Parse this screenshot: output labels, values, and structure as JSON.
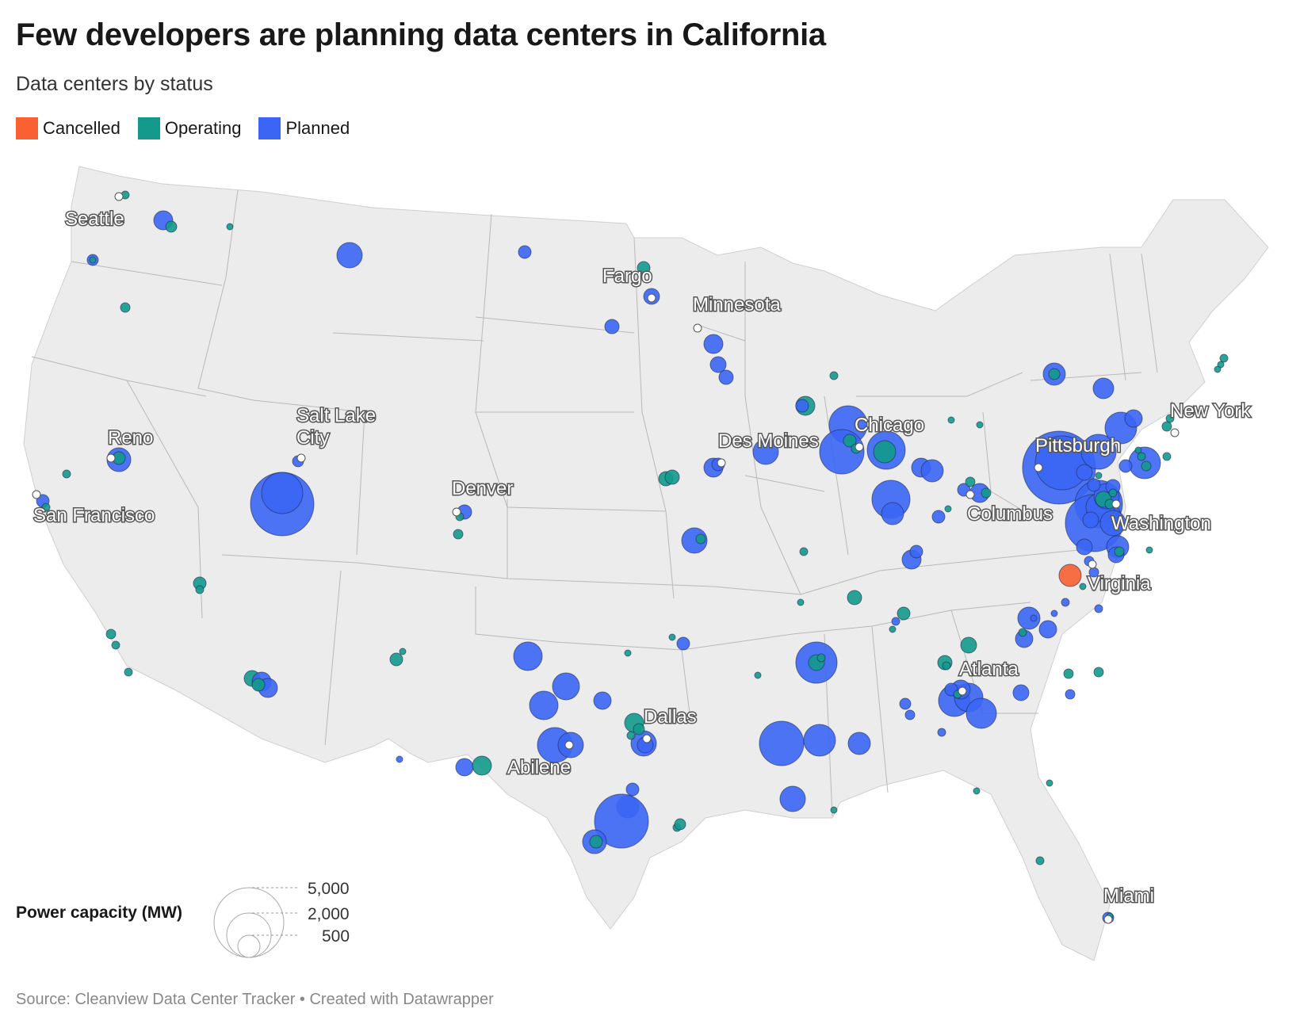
{
  "title": "Few developers are planning data centers in California",
  "subtitle": "Data centers by status",
  "legend": [
    {
      "label": "Cancelled",
      "color": "#fa6032"
    },
    {
      "label": "Operating",
      "color": "#139a8c"
    },
    {
      "label": "Planned",
      "color": "#3b66f5"
    }
  ],
  "cities": [
    "Seattle",
    "Fargo",
    "Minnesota",
    "Reno",
    "Salt Lake City",
    "San Francisco",
    "Denver",
    "Des Moines",
    "Chicago",
    "New York",
    "Pittsburgh",
    "Columbus",
    "Washington",
    "Virginia",
    "Atlanta",
    "Dallas",
    "Abilene",
    "Miami"
  ],
  "size_legend": {
    "title": "Power capacity (MW)",
    "values": [
      "5,000",
      "2,000",
      "500"
    ]
  },
  "source": "Source: Cleanview Data Center Tracker • Created with Datawrapper"
}
